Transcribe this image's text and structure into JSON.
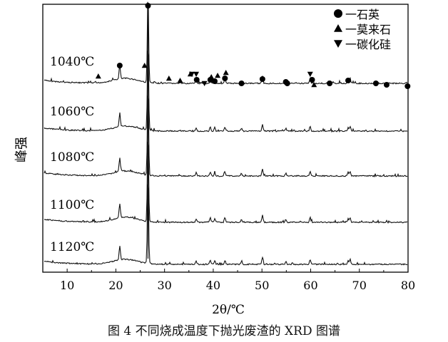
{
  "chart_data": {
    "type": "line",
    "xlabel": "2θ/℃",
    "ylabel": "峰强",
    "xlim": [
      5,
      80
    ],
    "x_ticks": [
      "10",
      "20",
      "30",
      "40",
      "50",
      "60",
      "70",
      "80"
    ],
    "grid": false,
    "legend_position": "top-right",
    "legend": [
      {
        "marker": "circle",
        "label": "一石英"
      },
      {
        "marker": "triangle-up",
        "label": "一莫来石"
      },
      {
        "marker": "triangle-down",
        "label": "一碳化硅"
      }
    ],
    "series": [
      {
        "name": "1040℃"
      },
      {
        "name": "1060℃"
      },
      {
        "name": "1080℃"
      },
      {
        "name": "1100℃"
      },
      {
        "name": "1120℃"
      }
    ],
    "peaks_2theta": [
      20.8,
      26.6,
      36.5,
      39.4,
      40.3,
      42.4,
      45.8,
      50.1,
      54.9,
      59.9,
      67.7,
      68.1
    ],
    "markers_1040": [
      {
        "marker": "triangle-up",
        "x": 16.4
      },
      {
        "marker": "circle",
        "x": 20.8
      },
      {
        "marker": "triangle-up",
        "x": 25.9
      },
      {
        "marker": "circle",
        "x": 26.6
      },
      {
        "marker": "triangle-up",
        "x": 30.9
      },
      {
        "marker": "triangle-up",
        "x": 33.2
      },
      {
        "marker": "triangle-up",
        "x": 35.3
      },
      {
        "marker": "triangle-down",
        "x": 35.6
      },
      {
        "marker": "triangle-down",
        "x": 36.5
      },
      {
        "marker": "circle",
        "x": 36.6
      },
      {
        "marker": "triangle-down",
        "x": 38.2
      },
      {
        "marker": "circle",
        "x": 39.4
      },
      {
        "marker": "triangle-up",
        "x": 39.6
      },
      {
        "marker": "circle",
        "x": 40.3
      },
      {
        "marker": "triangle-up",
        "x": 40.9
      },
      {
        "marker": "circle",
        "x": 42.4
      },
      {
        "marker": "triangle-up",
        "x": 42.6
      },
      {
        "marker": "circle",
        "x": 45.8
      },
      {
        "marker": "circle",
        "x": 50.1
      },
      {
        "marker": "circle",
        "x": 54.9
      },
      {
        "marker": "circle",
        "x": 55.2
      },
      {
        "marker": "triangle-down",
        "x": 59.9
      },
      {
        "marker": "circle",
        "x": 60.3
      },
      {
        "marker": "triangle-up",
        "x": 60.7
      },
      {
        "marker": "circle",
        "x": 63.9
      },
      {
        "marker": "circle",
        "x": 67.7
      },
      {
        "marker": "circle",
        "x": 73.4
      },
      {
        "marker": "circle",
        "x": 75.6
      },
      {
        "marker": "circle",
        "x": 79.9
      }
    ]
  },
  "caption": "图 4  不同烧成温度下抛光废渣的 XRD 图谱"
}
